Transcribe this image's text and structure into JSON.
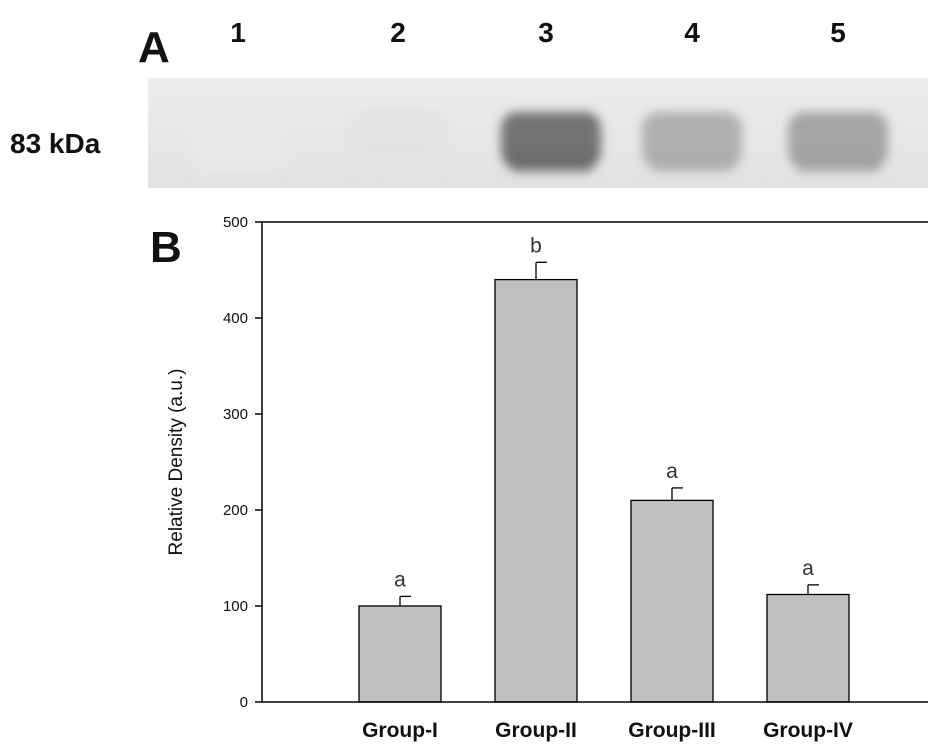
{
  "blot": {
    "panel_label": "A",
    "lanes": [
      "1",
      "2",
      "3",
      "4",
      "5"
    ],
    "lane_intensity": [
      0.03,
      0.06,
      0.85,
      0.42,
      0.5
    ],
    "band_label": "83 kDa"
  },
  "chart_data": {
    "type": "bar",
    "panel_label": "B",
    "categories": [
      "Group-I",
      "Group-II",
      "Group-III",
      "Group-IV"
    ],
    "values": [
      100,
      440,
      210,
      112
    ],
    "errors": [
      10,
      18,
      13,
      10
    ],
    "significance": [
      "a",
      "b",
      "a",
      "a"
    ],
    "title": "",
    "xlabel": "",
    "ylabel": "Relative Density (a.u.)",
    "ylim": [
      0,
      500
    ],
    "yticks": [
      0,
      100,
      200,
      300,
      400,
      500
    ],
    "bar_color": "#c0c0c0",
    "grid": false
  }
}
